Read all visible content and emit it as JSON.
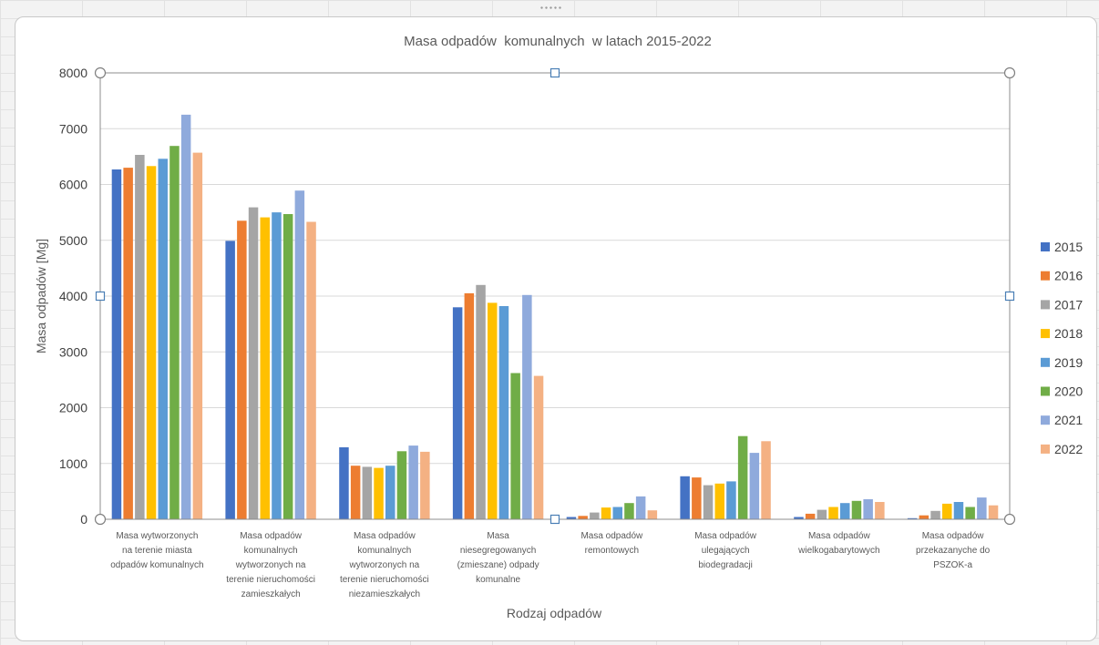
{
  "chart_data": {
    "type": "bar",
    "title": "Masa odpadów  komunalnych  w latach 2015-2022",
    "xlabel": "Rodzaj odpadów",
    "ylabel": "Masa odpadów [Mg]",
    "ylim": [
      0,
      8000
    ],
    "yticks": [
      0,
      1000,
      2000,
      3000,
      4000,
      5000,
      6000,
      7000,
      8000
    ],
    "grid": true,
    "legend_position": "right",
    "categories": [
      [
        "Masa  wytworzonych",
        "na terenie miasta",
        "odpadów komunalnych"
      ],
      [
        "Masa odpadów",
        "komunalnych",
        "wytworzonych na",
        "terenie nieruchomości",
        "zamieszkałych"
      ],
      [
        "Masa odpadów",
        "komunalnych",
        "wytworzonych na",
        "terenie nieruchomości",
        "niezamieszkałych"
      ],
      [
        "Masa",
        "niesegregowanych",
        "(zmieszane) odpady",
        "komunalne"
      ],
      [
        "Masa odpadów",
        "remontowych"
      ],
      [
        "Masa odpadów",
        "ulegających",
        "biodegradacji"
      ],
      [
        "Masa odpadów",
        "wielkogabarytowych"
      ],
      [
        "Masa odpadów",
        "przekazanyche do",
        "PSZOK-a"
      ]
    ],
    "series": [
      {
        "name": "2015",
        "color": "#4472c4",
        "values": [
          6270,
          4990,
          1290,
          3800,
          40,
          770,
          40,
          20
        ]
      },
      {
        "name": "2016",
        "color": "#ed7d31",
        "values": [
          6300,
          5350,
          960,
          4050,
          60,
          750,
          100,
          70
        ]
      },
      {
        "name": "2017",
        "color": "#a5a5a5",
        "values": [
          6530,
          5590,
          940,
          4200,
          120,
          610,
          170,
          150
        ]
      },
      {
        "name": "2018",
        "color": "#ffc000",
        "values": [
          6330,
          5410,
          920,
          3880,
          210,
          640,
          220,
          280
        ]
      },
      {
        "name": "2019",
        "color": "#5b9bd5",
        "values": [
          6460,
          5500,
          960,
          3820,
          220,
          680,
          290,
          310
        ]
      },
      {
        "name": "2020",
        "color": "#70ad47",
        "values": [
          6690,
          5470,
          1220,
          2620,
          290,
          1490,
          330,
          220
        ]
      },
      {
        "name": "2021",
        "color": "#8faadc",
        "values": [
          7250,
          5890,
          1320,
          4020,
          410,
          1190,
          360,
          390
        ]
      },
      {
        "name": "2022",
        "color": "#f4b183",
        "values": [
          6570,
          5330,
          1210,
          2570,
          160,
          1400,
          310,
          250
        ]
      }
    ]
  }
}
